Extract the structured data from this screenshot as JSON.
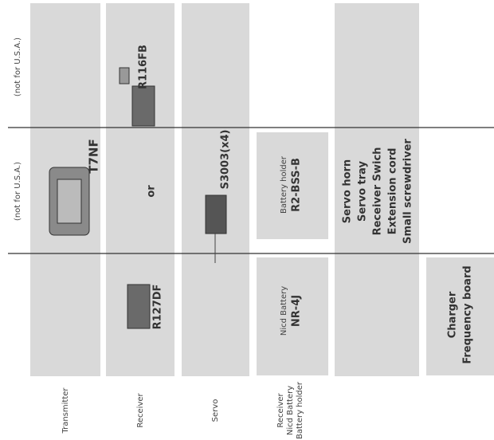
{
  "notes": [
    "(not for U.S.A.)",
    "(not for U.S.A.)"
  ],
  "items": {
    "transmitter": "T7NF",
    "receiver_a": "R116FB",
    "or": "or",
    "receiver_b": "R127DF",
    "servo": "S3003(x4)",
    "battery_holder": {
      "caption": "Battery holder",
      "model": "R2-BSS-B"
    },
    "battery": {
      "caption": "Nicd Battery",
      "model": "NR-4J"
    },
    "accessories": [
      "Servo horn",
      "Servo tray",
      "Receiver Swich",
      "Extension cord",
      "Small screwdriver"
    ],
    "charger": [
      "Charger",
      "Frequency board"
    ]
  },
  "column_labels": {
    "transmitter": "Transmitter",
    "receiver": "Receiver",
    "servo": "Servo",
    "battery": [
      "Receiver",
      "Nicd Battery",
      "Battery holder"
    ]
  }
}
